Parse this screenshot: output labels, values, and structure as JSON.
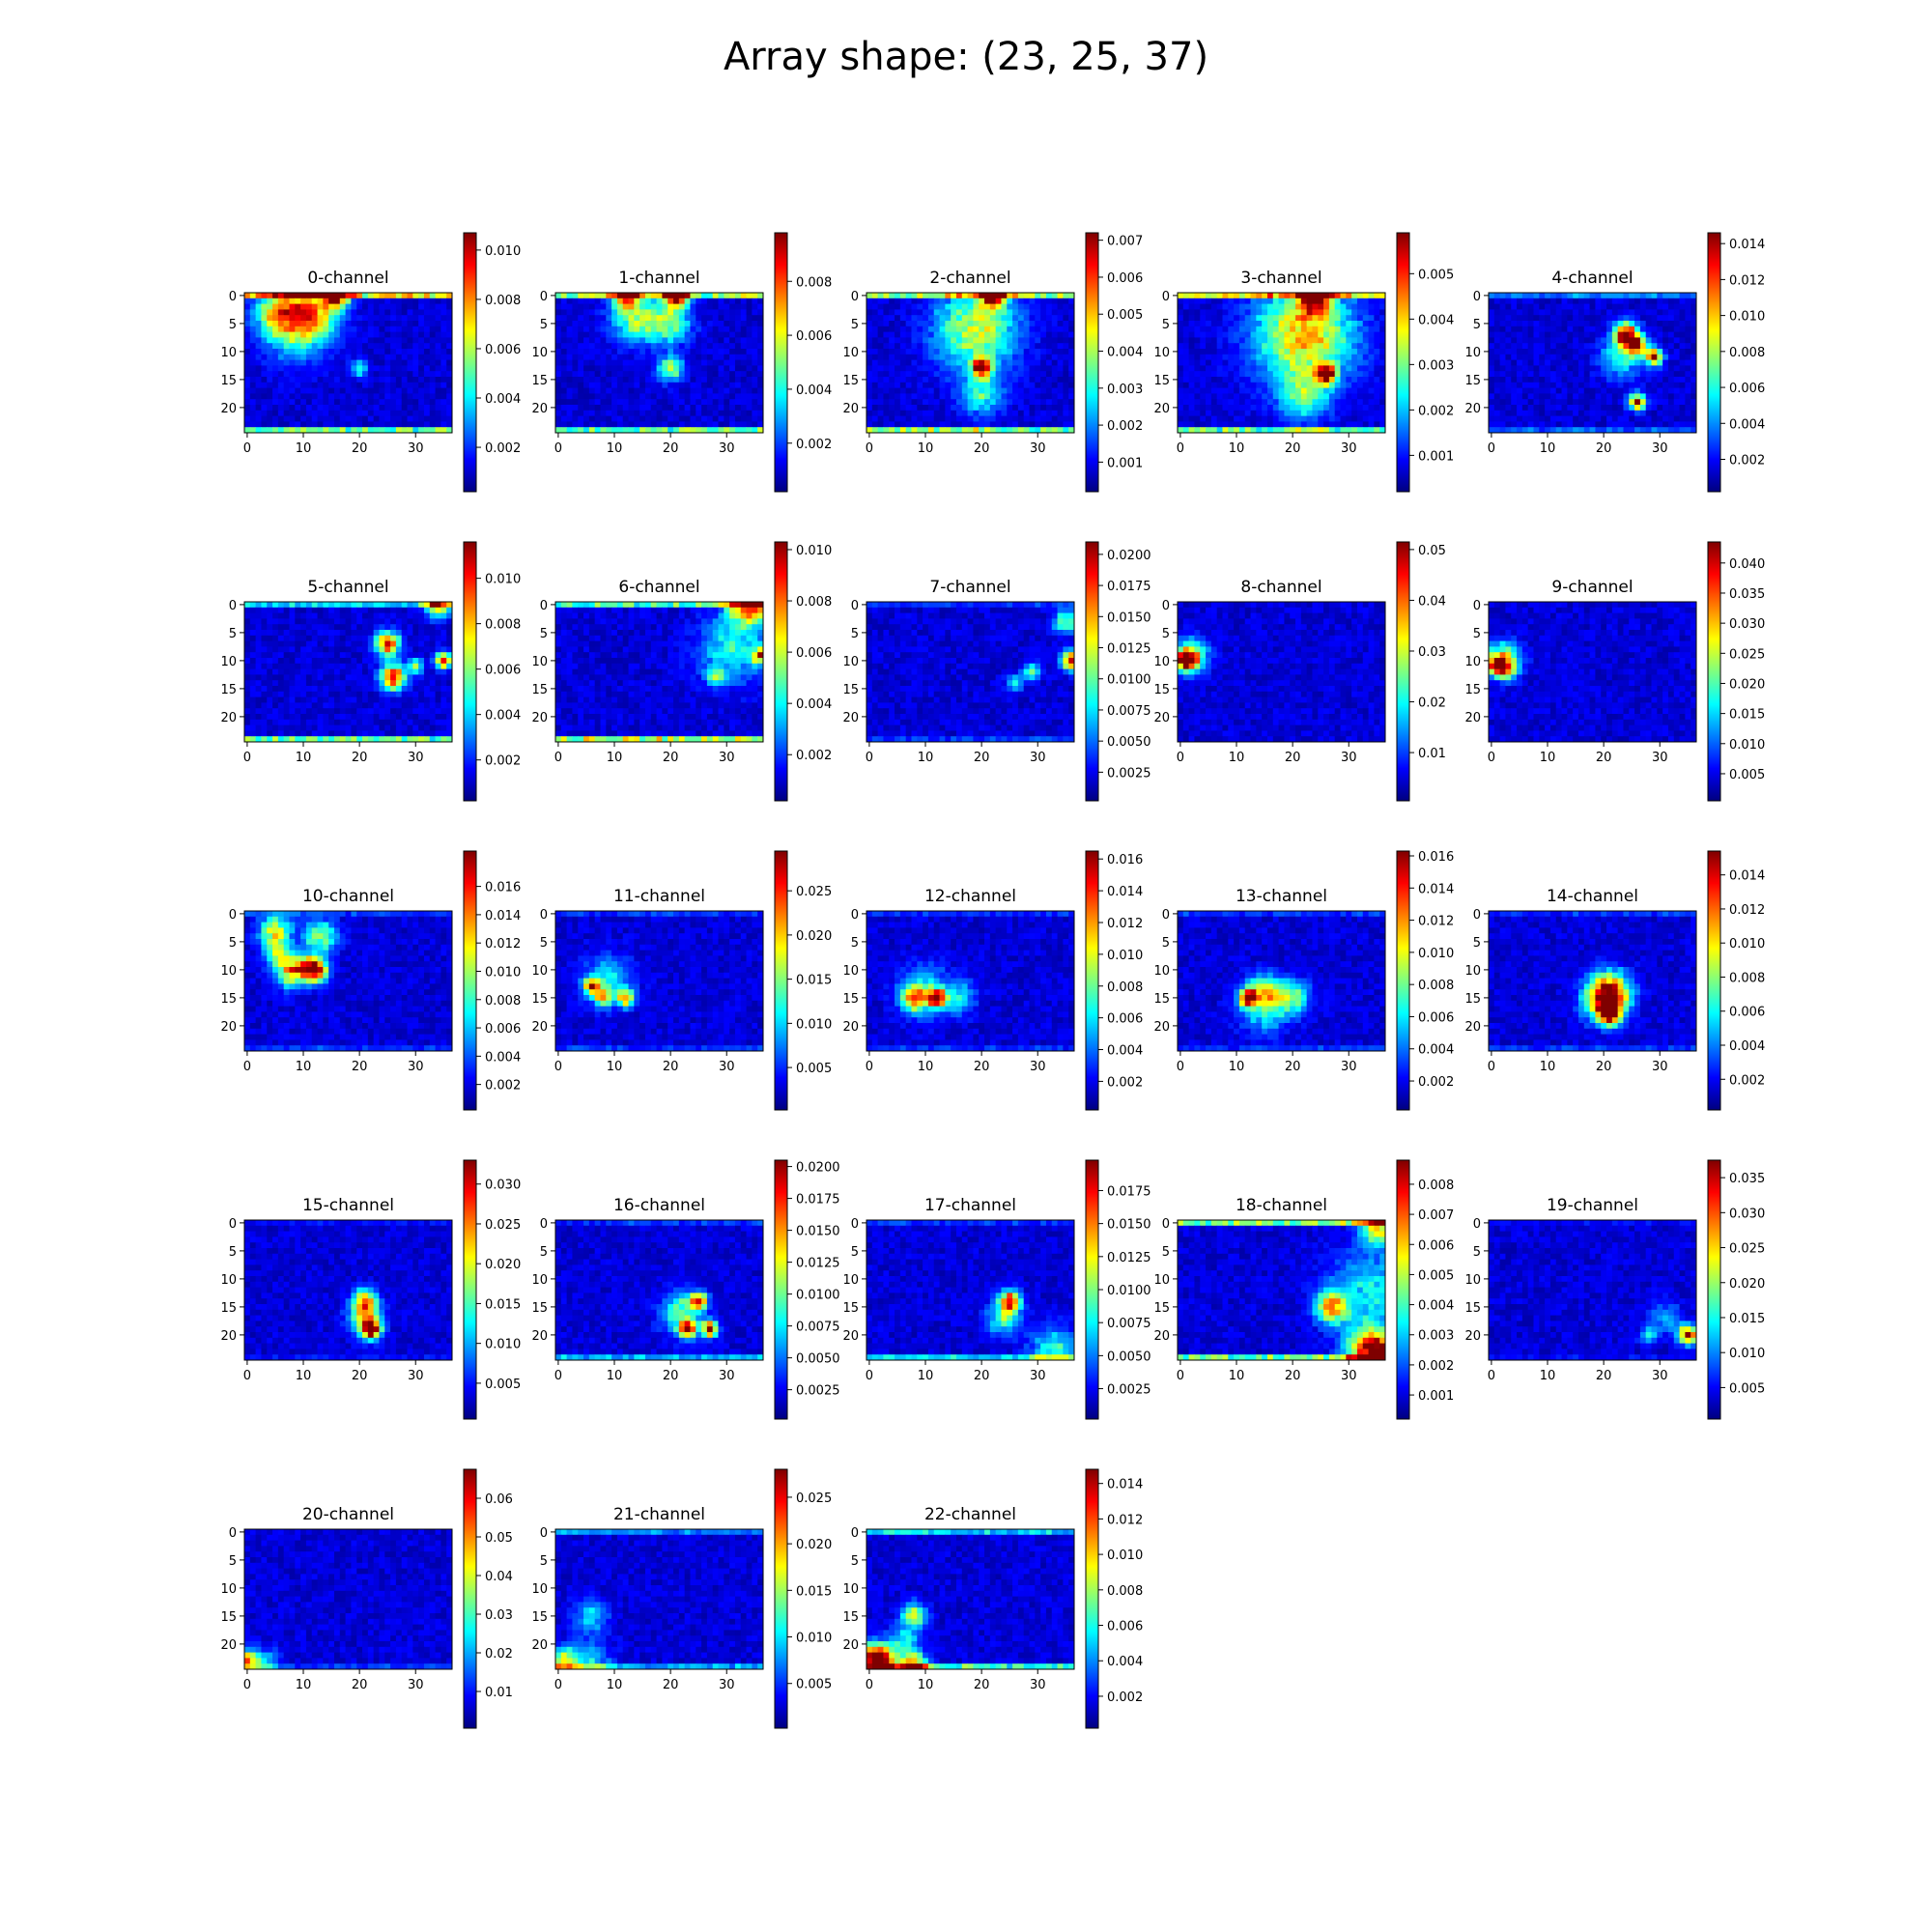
{
  "figure": {
    "title": "Array shape: (23, 25, 37)"
  },
  "colormap": [
    "#00007f",
    "#0000ff",
    "#007fff",
    "#00ffff",
    "#7fff7f",
    "#ffff00",
    "#ff7f00",
    "#ff0000",
    "#7f0000"
  ],
  "chart_data": {
    "type": "heatmap",
    "array_shape": [
      23,
      25,
      37
    ],
    "rows": 25,
    "cols": 37,
    "x_ticks": [
      0,
      10,
      20,
      30
    ],
    "y_ticks": [
      0,
      5,
      10,
      15,
      20
    ],
    "colormap": "jet",
    "panels": [
      {
        "title": "0-channel",
        "vmin": 0.0002,
        "vmax": 0.0107,
        "cbar_ticks": [
          "0.002",
          "0.004",
          "0.006",
          "0.008",
          "0.010"
        ],
        "ylim_cbar": [
          0.0002,
          0.0107
        ],
        "hot": [
          {
            "x": 6,
            "y": 3,
            "r": 3,
            "v": 0.55
          },
          {
            "x": 12,
            "y": 3,
            "r": 3,
            "v": 0.5
          },
          {
            "x": 16,
            "y": 0,
            "r": 1.5,
            "v": 1.0
          },
          {
            "x": 9,
            "y": 6,
            "r": 4,
            "v": 0.35
          },
          {
            "x": 20,
            "y": 13,
            "r": 1,
            "v": 0.35
          }
        ],
        "edge": {
          "top": 0.6,
          "bottom": 0.45
        }
      },
      {
        "title": "1-channel",
        "vmin": 0.0002,
        "vmax": 0.0098,
        "cbar_ticks": [
          "0.002",
          "0.004",
          "0.006",
          "0.008"
        ],
        "hot": [
          {
            "x": 14,
            "y": 4,
            "r": 3,
            "v": 0.5
          },
          {
            "x": 20,
            "y": 5,
            "r": 2.5,
            "v": 0.45
          },
          {
            "x": 20,
            "y": 13,
            "r": 1.5,
            "v": 0.55
          },
          {
            "x": 21,
            "y": 0,
            "r": 1.5,
            "v": 0.95
          },
          {
            "x": 12,
            "y": 0,
            "r": 1.5,
            "v": 0.85
          }
        ],
        "edge": {
          "top": 0.5,
          "bottom": 0.45
        }
      },
      {
        "title": "2-channel",
        "vmin": 0.0002,
        "vmax": 0.0072,
        "cbar_ticks": [
          "0.001",
          "0.002",
          "0.003",
          "0.004",
          "0.005",
          "0.006",
          "0.007"
        ],
        "hot": [
          {
            "x": 19,
            "y": 6,
            "r": 5,
            "v": 0.55
          },
          {
            "x": 20,
            "y": 13,
            "r": 1.2,
            "v": 1.0
          },
          {
            "x": 22,
            "y": 0,
            "r": 1.5,
            "v": 0.9
          },
          {
            "x": 20,
            "y": 18,
            "r": 2.5,
            "v": 0.35
          }
        ],
        "edge": {
          "top": 0.5,
          "bottom": 0.5
        }
      },
      {
        "title": "3-channel",
        "vmin": 0.0002,
        "vmax": 0.0059,
        "cbar_ticks": [
          "0.001",
          "0.002",
          "0.003",
          "0.004",
          "0.005"
        ],
        "hot": [
          {
            "x": 22,
            "y": 7,
            "r": 6,
            "v": 0.65
          },
          {
            "x": 26,
            "y": 14,
            "r": 1.2,
            "v": 1.0
          },
          {
            "x": 24,
            "y": 0,
            "r": 2,
            "v": 0.95
          },
          {
            "x": 22,
            "y": 18,
            "r": 3,
            "v": 0.35
          }
        ],
        "edge": {
          "top": 0.55,
          "bottom": 0.45
        }
      },
      {
        "title": "4-channel",
        "vmin": 0.0002,
        "vmax": 0.0146,
        "cbar_ticks": [
          "0.002",
          "0.004",
          "0.006",
          "0.008",
          "0.010",
          "0.012",
          "0.014"
        ],
        "hot": [
          {
            "x": 24,
            "y": 7,
            "r": 1.5,
            "v": 0.95
          },
          {
            "x": 26,
            "y": 9,
            "r": 1.2,
            "v": 0.8
          },
          {
            "x": 29,
            "y": 11,
            "r": 1,
            "v": 0.9
          },
          {
            "x": 26,
            "y": 19,
            "r": 1,
            "v": 0.9
          },
          {
            "x": 23,
            "y": 11,
            "r": 2.5,
            "v": 0.35
          }
        ],
        "edge": {
          "top": 0.2,
          "bottom": 0.15
        }
      },
      {
        "title": "5-channel",
        "vmin": 0.0002,
        "vmax": 0.0116,
        "cbar_ticks": [
          "0.002",
          "0.004",
          "0.006",
          "0.008",
          "0.010"
        ],
        "hot": [
          {
            "x": 25,
            "y": 7,
            "r": 1.5,
            "v": 0.85
          },
          {
            "x": 26,
            "y": 13,
            "r": 1.5,
            "v": 0.95
          },
          {
            "x": 35,
            "y": 10,
            "r": 1,
            "v": 0.85
          },
          {
            "x": 34,
            "y": 0,
            "r": 1.5,
            "v": 0.75
          },
          {
            "x": 30,
            "y": 11,
            "r": 1,
            "v": 0.45
          }
        ],
        "edge": {
          "top": 0.3,
          "bottom": 0.45
        }
      },
      {
        "title": "6-channel",
        "vmin": 0.0002,
        "vmax": 0.0103,
        "cbar_ticks": [
          "0.002",
          "0.004",
          "0.006",
          "0.008",
          "0.010"
        ],
        "hot": [
          {
            "x": 34,
            "y": 0,
            "r": 2.5,
            "v": 0.85
          },
          {
            "x": 36,
            "y": 9,
            "r": 1,
            "v": 0.7
          },
          {
            "x": 28,
            "y": 13,
            "r": 1,
            "v": 0.5
          },
          {
            "x": 31,
            "y": 8,
            "r": 4,
            "v": 0.35
          }
        ],
        "edge": {
          "top": 0.4,
          "bottom": 0.55
        }
      },
      {
        "title": "7-channel",
        "vmin": 0.0002,
        "vmax": 0.021,
        "cbar_ticks": [
          "0.0025",
          "0.0050",
          "0.0075",
          "0.0100",
          "0.0125",
          "0.0150",
          "0.0175",
          "0.0200"
        ],
        "hot": [
          {
            "x": 36,
            "y": 10,
            "r": 1.2,
            "v": 0.95
          },
          {
            "x": 35,
            "y": 3,
            "r": 1.5,
            "v": 0.45
          },
          {
            "x": 29,
            "y": 12,
            "r": 1,
            "v": 0.45
          },
          {
            "x": 26,
            "y": 14,
            "r": 1,
            "v": 0.35
          }
        ],
        "edge": {
          "top": 0.1,
          "bottom": 0.1
        }
      },
      {
        "title": "8-channel",
        "vmin": 0.0005,
        "vmax": 0.0515,
        "cbar_ticks": [
          "0.01",
          "0.02",
          "0.03",
          "0.04",
          "0.05"
        ],
        "hot": [
          {
            "x": 1,
            "y": 10,
            "r": 1.2,
            "v": 1.0
          },
          {
            "x": 2,
            "y": 9,
            "r": 2,
            "v": 0.55
          }
        ],
        "edge": {
          "top": 0.0,
          "bottom": 0.0
        }
      },
      {
        "title": "9-channel",
        "vmin": 0.0005,
        "vmax": 0.0435,
        "cbar_ticks": [
          "0.005",
          "0.010",
          "0.015",
          "0.020",
          "0.025",
          "0.030",
          "0.035",
          "0.040"
        ],
        "hot": [
          {
            "x": 2,
            "y": 10,
            "r": 2,
            "v": 0.7
          },
          {
            "x": 1,
            "y": 11,
            "r": 1,
            "v": 0.75
          },
          {
            "x": 3,
            "y": 12,
            "r": 1,
            "v": 0.3
          }
        ],
        "edge": {
          "top": 0.0,
          "bottom": 0.0
        }
      },
      {
        "title": "10-channel",
        "vmin": 0.0002,
        "vmax": 0.0185,
        "cbar_ticks": [
          "0.002",
          "0.004",
          "0.006",
          "0.008",
          "0.010",
          "0.012",
          "0.014",
          "0.016"
        ],
        "hot": [
          {
            "x": 12,
            "y": 10,
            "r": 1.5,
            "v": 1.0
          },
          {
            "x": 8,
            "y": 10,
            "r": 2,
            "v": 0.75
          },
          {
            "x": 5,
            "y": 3,
            "r": 2,
            "v": 0.55
          },
          {
            "x": 13,
            "y": 4,
            "r": 2,
            "v": 0.5
          },
          {
            "x": 5,
            "y": 7,
            "r": 1.5,
            "v": 0.4
          }
        ],
        "edge": {
          "top": 0.1,
          "bottom": 0.1
        }
      },
      {
        "title": "11-channel",
        "vmin": 0.0002,
        "vmax": 0.0295,
        "cbar_ticks": [
          "0.005",
          "0.010",
          "0.015",
          "0.020",
          "0.025"
        ],
        "hot": [
          {
            "x": 6,
            "y": 13,
            "r": 1,
            "v": 0.75
          },
          {
            "x": 12,
            "y": 15,
            "r": 1,
            "v": 0.7
          },
          {
            "x": 8,
            "y": 15,
            "r": 1,
            "v": 0.6
          },
          {
            "x": 9,
            "y": 12,
            "r": 3,
            "v": 0.3
          }
        ],
        "edge": {
          "top": 0.1,
          "bottom": 0.1
        }
      },
      {
        "title": "12-channel",
        "vmin": 0.0002,
        "vmax": 0.0165,
        "cbar_ticks": [
          "0.002",
          "0.004",
          "0.006",
          "0.008",
          "0.010",
          "0.012",
          "0.014",
          "0.016"
        ],
        "hot": [
          {
            "x": 12,
            "y": 15,
            "r": 1,
            "v": 1.0
          },
          {
            "x": 8,
            "y": 15,
            "r": 1.5,
            "v": 0.6
          },
          {
            "x": 10,
            "y": 14,
            "r": 3,
            "v": 0.35
          },
          {
            "x": 16,
            "y": 15,
            "r": 2,
            "v": 0.3
          }
        ],
        "edge": {
          "top": 0.1,
          "bottom": 0.1
        }
      },
      {
        "title": "13-channel",
        "vmin": 0.0002,
        "vmax": 0.0163,
        "cbar_ticks": [
          "0.002",
          "0.004",
          "0.006",
          "0.008",
          "0.010",
          "0.012",
          "0.014",
          "0.016"
        ],
        "hot": [
          {
            "x": 12,
            "y": 15,
            "r": 1,
            "v": 1.0
          },
          {
            "x": 15,
            "y": 14,
            "r": 2,
            "v": 0.5
          },
          {
            "x": 20,
            "y": 15,
            "r": 2,
            "v": 0.45
          },
          {
            "x": 15,
            "y": 17,
            "r": 3,
            "v": 0.3
          }
        ],
        "edge": {
          "top": 0.1,
          "bottom": 0.1
        }
      },
      {
        "title": "14-channel",
        "vmin": 0.0002,
        "vmax": 0.0154,
        "cbar_ticks": [
          "0.002",
          "0.004",
          "0.006",
          "0.008",
          "0.010",
          "0.012",
          "0.014"
        ],
        "hot": [
          {
            "x": 21,
            "y": 14,
            "r": 2.5,
            "v": 0.8
          },
          {
            "x": 21,
            "y": 18,
            "r": 1.2,
            "v": 1.0
          },
          {
            "x": 20,
            "y": 16,
            "r": 2.5,
            "v": 0.45
          }
        ],
        "edge": {
          "top": 0.1,
          "bottom": 0.1
        }
      },
      {
        "title": "15-channel",
        "vmin": 0.0005,
        "vmax": 0.033,
        "cbar_ticks": [
          "0.005",
          "0.010",
          "0.015",
          "0.020",
          "0.025",
          "0.030"
        ],
        "hot": [
          {
            "x": 22,
            "y": 19,
            "r": 1.2,
            "v": 1.0
          },
          {
            "x": 21,
            "y": 14,
            "r": 1.5,
            "v": 0.65
          },
          {
            "x": 21,
            "y": 17,
            "r": 2,
            "v": 0.45
          }
        ],
        "edge": {
          "top": 0.05,
          "bottom": 0.05
        }
      },
      {
        "title": "16-channel",
        "vmin": 0.0002,
        "vmax": 0.0205,
        "cbar_ticks": [
          "0.0025",
          "0.0050",
          "0.0075",
          "0.0100",
          "0.0125",
          "0.0150",
          "0.0175",
          "0.0200"
        ],
        "hot": [
          {
            "x": 23,
            "y": 19,
            "r": 1,
            "v": 0.95
          },
          {
            "x": 27,
            "y": 19,
            "r": 1,
            "v": 0.9
          },
          {
            "x": 25,
            "y": 14,
            "r": 1,
            "v": 0.8
          },
          {
            "x": 22,
            "y": 16,
            "r": 2.5,
            "v": 0.45
          }
        ],
        "edge": {
          "top": 0.1,
          "bottom": 0.25
        }
      },
      {
        "title": "17-channel",
        "vmin": 0.0002,
        "vmax": 0.0198,
        "cbar_ticks": [
          "0.0025",
          "0.0050",
          "0.0075",
          "0.0100",
          "0.0125",
          "0.0150",
          "0.0175"
        ],
        "hot": [
          {
            "x": 25,
            "y": 14,
            "r": 1.2,
            "v": 0.95
          },
          {
            "x": 24,
            "y": 17,
            "r": 2,
            "v": 0.4
          },
          {
            "x": 33,
            "y": 23,
            "r": 3,
            "v": 0.35
          }
        ],
        "edge": {
          "top": 0.1,
          "bottom": 0.3
        }
      },
      {
        "title": "18-channel",
        "vmin": 0.0002,
        "vmax": 0.0088,
        "cbar_ticks": [
          "0.001",
          "0.002",
          "0.003",
          "0.004",
          "0.005",
          "0.006",
          "0.007",
          "0.008"
        ],
        "hot": [
          {
            "x": 34,
            "y": 23,
            "r": 3,
            "v": 0.9
          },
          {
            "x": 36,
            "y": 24,
            "r": 1.5,
            "v": 1.0
          },
          {
            "x": 27,
            "y": 15,
            "r": 2,
            "v": 0.65
          },
          {
            "x": 35,
            "y": 1,
            "r": 2,
            "v": 0.6
          },
          {
            "x": 34,
            "y": 12,
            "r": 5,
            "v": 0.3
          }
        ],
        "edge": {
          "top": 0.5,
          "bottom": 0.45
        }
      },
      {
        "title": "19-channel",
        "vmin": 0.0005,
        "vmax": 0.0375,
        "cbar_ticks": [
          "0.005",
          "0.010",
          "0.015",
          "0.020",
          "0.025",
          "0.030",
          "0.035"
        ],
        "hot": [
          {
            "x": 35,
            "y": 20,
            "r": 1.2,
            "v": 0.9
          },
          {
            "x": 28,
            "y": 20,
            "r": 1,
            "v": 0.35
          },
          {
            "x": 31,
            "y": 17,
            "r": 2,
            "v": 0.2
          }
        ],
        "edge": {
          "top": 0.05,
          "bottom": 0.05
        }
      },
      {
        "title": "20-channel",
        "vmin": 0.0005,
        "vmax": 0.0675,
        "cbar_ticks": [
          "0.01",
          "0.02",
          "0.03",
          "0.04",
          "0.05",
          "0.06"
        ],
        "hot": [
          {
            "x": 0,
            "y": 23,
            "r": 1.2,
            "v": 0.7
          },
          {
            "x": 3,
            "y": 24,
            "r": 2,
            "v": 0.3
          }
        ],
        "edge": {
          "top": 0.0,
          "bottom": 0.1
        }
      },
      {
        "title": "21-channel",
        "vmin": 0.0002,
        "vmax": 0.028,
        "cbar_ticks": [
          "0.005",
          "0.010",
          "0.015",
          "0.020",
          "0.025"
        ],
        "hot": [
          {
            "x": 1,
            "y": 23,
            "r": 1.5,
            "v": 0.55
          },
          {
            "x": 5,
            "y": 24,
            "r": 3,
            "v": 0.3
          },
          {
            "x": 6,
            "y": 15,
            "r": 2,
            "v": 0.3
          }
        ],
        "edge": {
          "top": 0.2,
          "bottom": 0.25
        }
      },
      {
        "title": "22-channel",
        "vmin": 0.0002,
        "vmax": 0.0148,
        "cbar_ticks": [
          "0.002",
          "0.004",
          "0.006",
          "0.008",
          "0.010",
          "0.012",
          "0.014"
        ],
        "hot": [
          {
            "x": 2,
            "y": 24,
            "r": 2,
            "v": 0.95
          },
          {
            "x": 8,
            "y": 24,
            "r": 1.5,
            "v": 0.85
          },
          {
            "x": 8,
            "y": 15,
            "r": 1.5,
            "v": 0.55
          },
          {
            "x": 1,
            "y": 22,
            "r": 1.5,
            "v": 0.7
          },
          {
            "x": 6,
            "y": 20,
            "r": 2,
            "v": 0.35
          }
        ],
        "edge": {
          "top": 0.3,
          "bottom": 0.4
        }
      }
    ]
  }
}
